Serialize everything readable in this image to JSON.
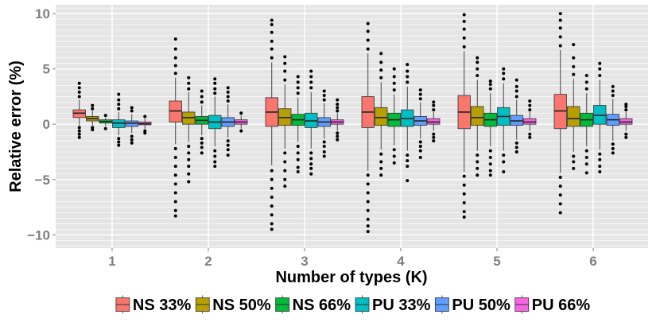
{
  "chart_data": {
    "type": "box",
    "xlabel": "Number of types (K)",
    "ylabel": "Relative error (%)",
    "categories": [
      "1",
      "2",
      "3",
      "4",
      "5",
      "6"
    ],
    "ylim": [
      -11.2,
      10.8
    ],
    "yticks": [
      -10,
      -5,
      0,
      5,
      10
    ],
    "grid": true,
    "legend_position": "bottom",
    "series": [
      {
        "name": "NS 33%",
        "color": "#F8766D",
        "boxes": [
          {
            "q1": 0.6,
            "median": 1.0,
            "q3": 1.3,
            "low": -0.1,
            "high": 2.2,
            "out_low": [
              -0.3,
              -0.6,
              -0.9,
              -1.2
            ],
            "out_high": [
              2.5,
              2.9,
              3.3,
              3.7
            ]
          },
          {
            "q1": 0.2,
            "median": 1.2,
            "q3": 2.1,
            "low": -1.8,
            "high": 4.2,
            "out_low": [
              -2.2,
              -3.0,
              -3.8,
              -4.6,
              -5.4,
              -6.2,
              -7.0,
              -7.8,
              -8.3
            ],
            "out_high": [
              4.6,
              5.3,
              6.0,
              6.8,
              7.7
            ]
          },
          {
            "q1": -0.2,
            "median": 1.1,
            "q3": 2.4,
            "low": -3.7,
            "high": 5.6,
            "out_low": [
              -4.2,
              -5.0,
              -5.8,
              -6.6,
              -7.4,
              -8.2,
              -9.0,
              -9.5
            ],
            "out_high": [
              6.0,
              6.8,
              7.5,
              8.3,
              9.0,
              9.4
            ]
          },
          {
            "q1": -0.3,
            "median": 1.1,
            "q3": 2.5,
            "low": -4.2,
            "high": 6.4,
            "out_low": [
              -4.6,
              -5.4,
              -6.2,
              -7.0,
              -7.8,
              -8.6,
              -9.2,
              -9.7
            ],
            "out_high": [
              6.8,
              7.6,
              8.4,
              9.1
            ]
          },
          {
            "q1": -0.4,
            "median": 1.1,
            "q3": 2.6,
            "low": -4.3,
            "high": 6.6,
            "out_low": [
              -4.7,
              -5.5,
              -6.3,
              -7.1,
              -7.9,
              -8.4
            ],
            "out_high": [
              7.0,
              7.8,
              8.6,
              9.3,
              9.9
            ]
          },
          {
            "q1": -0.4,
            "median": 1.2,
            "q3": 2.7,
            "low": -4.4,
            "high": 6.7,
            "out_low": [
              -4.8,
              -5.6,
              -6.4,
              -7.2,
              -8.0
            ],
            "out_high": [
              7.1,
              7.9,
              8.7,
              9.4,
              10.0
            ]
          }
        ]
      },
      {
        "name": "NS 50%",
        "color": "#B79F00",
        "boxes": [
          {
            "q1": 0.3,
            "median": 0.5,
            "q3": 0.7,
            "low": -0.1,
            "high": 1.2,
            "out_low": [
              -0.3,
              -0.5
            ],
            "out_high": [
              1.4,
              1.7
            ]
          },
          {
            "q1": 0.0,
            "median": 0.6,
            "q3": 1.1,
            "low": -1.6,
            "high": 2.9,
            "out_low": [
              -2.0,
              -2.6,
              -3.2,
              -3.8,
              -4.5,
              -5.2
            ],
            "out_high": [
              3.2,
              3.7,
              4.2
            ]
          },
          {
            "q1": -0.1,
            "median": 0.6,
            "q3": 1.4,
            "low": -2.2,
            "high": 3.6,
            "out_low": [
              -2.6,
              -3.4,
              -4.2,
              -5.0,
              -5.6
            ],
            "out_high": [
              4.0,
              4.8,
              5.5,
              6.1
            ]
          },
          {
            "q1": -0.1,
            "median": 0.6,
            "q3": 1.5,
            "low": -2.3,
            "high": 3.8,
            "out_low": [
              -2.7,
              -3.4,
              -4.0,
              -4.6
            ],
            "out_high": [
              4.2,
              4.9,
              5.6,
              6.4
            ]
          },
          {
            "q1": -0.1,
            "median": 0.6,
            "q3": 1.6,
            "low": -2.4,
            "high": 4.0,
            "out_low": [
              -2.8,
              -3.4,
              -4.0,
              -4.6
            ],
            "out_high": [
              4.4,
              5.0,
              5.6,
              6.0
            ]
          },
          {
            "q1": -0.2,
            "median": 0.5,
            "q3": 1.6,
            "low": -2.5,
            "high": 4.1,
            "out_low": [
              -2.9,
              -3.4,
              -4.0
            ],
            "out_high": [
              4.5,
              5.2,
              6.0,
              7.2
            ]
          }
        ]
      },
      {
        "name": "NS 66%",
        "color": "#00BA38",
        "boxes": [
          {
            "q1": 0.1,
            "median": 0.25,
            "q3": 0.4,
            "low": -0.2,
            "high": 0.6,
            "out_low": [
              -0.4
            ],
            "out_high": [
              0.8
            ]
          },
          {
            "q1": 0.0,
            "median": 0.35,
            "q3": 0.7,
            "low": -1.0,
            "high": 1.7,
            "out_low": [
              -1.3,
              -1.7,
              -2.1,
              -2.6
            ],
            "out_high": [
              2.0,
              2.5,
              3.0
            ]
          },
          {
            "q1": -0.1,
            "median": 0.4,
            "q3": 0.9,
            "low": -1.6,
            "high": 2.4,
            "out_low": [
              -2.0,
              -2.6,
              -3.2,
              -3.9,
              -4.3
            ],
            "out_high": [
              2.8,
              3.3,
              3.8,
              4.3
            ]
          },
          {
            "q1": -0.2,
            "median": 0.4,
            "q3": 1.0,
            "low": -1.9,
            "high": 2.7,
            "out_low": [
              -2.3,
              -2.9,
              -3.5
            ],
            "out_high": [
              3.1,
              3.7,
              4.3,
              5.0
            ]
          },
          {
            "q1": -0.2,
            "median": 0.4,
            "q3": 1.0,
            "low": -2.0,
            "high": 2.8,
            "out_low": [
              -2.4,
              -3.0,
              -3.6,
              -4.2,
              -4.6
            ],
            "out_high": [
              3.2,
              3.6,
              3.9
            ]
          },
          {
            "q1": -0.2,
            "median": 0.4,
            "q3": 1.0,
            "low": -2.0,
            "high": 2.8,
            "out_low": [
              -2.4,
              -3.0,
              -3.6,
              -4.4
            ],
            "out_high": [
              3.2,
              3.8,
              4.4
            ]
          }
        ]
      },
      {
        "name": "PU 33%",
        "color": "#00BFC4",
        "boxes": [
          {
            "q1": -0.3,
            "median": 0.1,
            "q3": 0.4,
            "low": -1.0,
            "high": 1.1,
            "out_low": [
              -1.3,
              -1.6,
              -1.9
            ],
            "out_high": [
              1.4,
              1.8,
              2.2,
              2.7
            ]
          },
          {
            "q1": -0.4,
            "median": 0.2,
            "q3": 0.8,
            "low": -2.0,
            "high": 2.5,
            "out_low": [
              -2.4,
              -2.9,
              -3.4,
              -3.8
            ],
            "out_high": [
              2.8,
              3.2,
              3.7,
              4.1
            ]
          },
          {
            "q1": -0.3,
            "median": 0.3,
            "q3": 1.0,
            "low": -2.2,
            "high": 2.9,
            "out_low": [
              -2.6,
              -3.1,
              -3.6,
              -4.0,
              -4.5
            ],
            "out_high": [
              3.3,
              3.8,
              4.3,
              4.8
            ]
          },
          {
            "q1": -0.2,
            "median": 0.5,
            "q3": 1.3,
            "low": -2.4,
            "high": 3.4,
            "out_low": [
              -2.8,
              -3.3,
              -3.8,
              -5.1
            ],
            "out_high": [
              3.8,
              4.3,
              4.8,
              5.4
            ]
          },
          {
            "q1": -0.1,
            "median": 0.7,
            "q3": 1.5,
            "low": -2.4,
            "high": 3.7,
            "out_low": [
              -2.8,
              -3.4,
              -4.3
            ],
            "out_high": [
              4.1,
              4.6,
              5.0
            ]
          },
          {
            "q1": 0.0,
            "median": 0.8,
            "q3": 1.7,
            "low": -2.3,
            "high": 4.0,
            "out_low": [
              -2.7,
              -3.2,
              -3.8,
              -4.3
            ],
            "out_high": [
              4.4,
              5.0,
              5.5
            ]
          }
        ]
      },
      {
        "name": "PU 50%",
        "color": "#619CFF",
        "boxes": [
          {
            "q1": -0.2,
            "median": 0.1,
            "q3": 0.3,
            "low": -0.8,
            "high": 0.9,
            "out_low": [
              -1.1,
              -1.4,
              -1.7
            ],
            "out_high": [
              1.2,
              1.5
            ]
          },
          {
            "q1": -0.2,
            "median": 0.2,
            "q3": 0.6,
            "low": -1.2,
            "high": 1.8,
            "out_low": [
              -1.5,
              -1.9,
              -2.3,
              -2.8
            ],
            "out_high": [
              2.1,
              2.5,
              2.9,
              3.3
            ]
          },
          {
            "q1": -0.2,
            "median": 0.2,
            "q3": 0.6,
            "low": -1.3,
            "high": 1.9,
            "out_low": [
              -1.6,
              -2.0,
              -2.5,
              -2.9
            ],
            "out_high": [
              2.2,
              2.6,
              3.0
            ]
          },
          {
            "q1": -0.1,
            "median": 0.3,
            "q3": 0.7,
            "low": -1.3,
            "high": 2.0,
            "out_low": [
              -1.6,
              -2.0,
              -2.4,
              -3.0
            ],
            "out_high": [
              2.3,
              2.7,
              3.1
            ]
          },
          {
            "q1": -0.1,
            "median": 0.3,
            "q3": 0.8,
            "low": -1.4,
            "high": 2.2,
            "out_low": [
              -1.7,
              -2.1,
              -2.5
            ],
            "out_high": [
              2.5,
              3.0,
              3.4,
              4.0
            ]
          },
          {
            "q1": -0.1,
            "median": 0.4,
            "q3": 0.9,
            "low": -1.5,
            "high": 2.3,
            "out_low": [
              -1.8,
              -2.2,
              -2.6
            ],
            "out_high": [
              2.6,
              3.0,
              3.4
            ]
          }
        ]
      },
      {
        "name": "PU 66%",
        "color": "#F564E3",
        "boxes": [
          {
            "q1": -0.05,
            "median": 0.05,
            "q3": 0.2,
            "low": -0.4,
            "high": 0.5,
            "out_low": [
              -0.6,
              -0.8
            ],
            "out_high": [
              0.7
            ]
          },
          {
            "q1": 0.0,
            "median": 0.2,
            "q3": 0.4,
            "low": -0.4,
            "high": 0.8,
            "out_low": [
              -0.6
            ],
            "out_high": [
              1.0
            ]
          },
          {
            "q1": 0.0,
            "median": 0.2,
            "q3": 0.4,
            "low": -0.6,
            "high": 1.0,
            "out_low": [
              -0.8,
              -1.1,
              -1.4
            ],
            "out_high": [
              1.2,
              1.5,
              1.8,
              2.2
            ]
          },
          {
            "q1": 0.0,
            "median": 0.2,
            "q3": 0.5,
            "low": -0.6,
            "high": 1.1,
            "out_low": [
              -0.9,
              -1.2,
              -1.5
            ],
            "out_high": [
              1.3,
              1.7,
              2.0
            ]
          },
          {
            "q1": 0.0,
            "median": 0.2,
            "q3": 0.5,
            "low": -0.6,
            "high": 1.1,
            "out_low": [
              -0.9,
              -1.2
            ],
            "out_high": [
              1.3,
              1.7,
              2.1
            ]
          },
          {
            "q1": 0.0,
            "median": 0.2,
            "q3": 0.5,
            "low": -0.6,
            "high": 1.1,
            "out_low": [
              -0.9,
              -1.2
            ],
            "out_high": [
              1.3,
              1.6,
              1.8
            ]
          }
        ]
      }
    ]
  }
}
